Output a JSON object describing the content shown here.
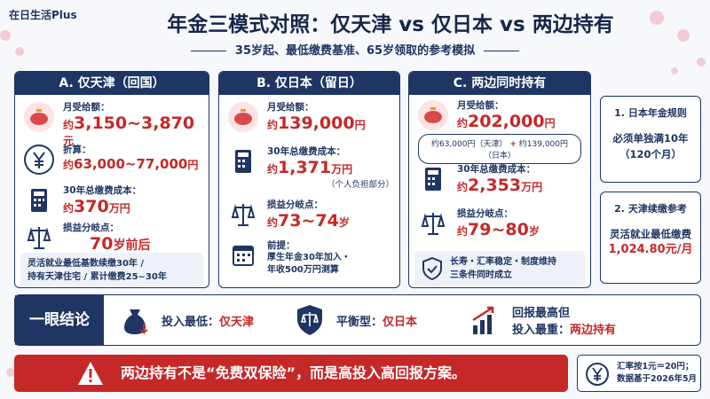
{
  "brand": "在日生活Plus",
  "title": "年金三模式对照：仅天津 vs 仅日本 vs 两边持有",
  "subtitle": "35岁起、最低缴费基准、65岁领取的参考模拟",
  "columns": [
    {
      "header": "A. 仅天津（回国）",
      "items": [
        {
          "label": "月受给额：",
          "prefix": "约",
          "value": "3,150~3,870",
          "unit": "元"
        },
        {
          "label": "折算：",
          "prefix": "约",
          "value": "63,000~77,000",
          "unit": "円"
        },
        {
          "label": "30年总缴费成本：",
          "prefix": "约",
          "value": "370",
          "unit": "万円"
        },
        {
          "label": "损益分岐点：",
          "value": "70",
          "unit": "岁前后"
        }
      ],
      "footer": [
        "灵活就业最低基数续缴30年 /",
        "持有天津住宅 / 累计缴费25~30年"
      ]
    },
    {
      "header": "B. 仅日本（留日）",
      "items": [
        {
          "label": "月受给额：",
          "prefix": "约",
          "value": "139,000",
          "unit": "円"
        },
        {
          "label": "30年总缴费成本：",
          "prefix": "约",
          "value": "1,371",
          "unit": "万円",
          "note": "（个人负担部分）"
        },
        {
          "label": "损益分岐点：",
          "prefix": "约",
          "value": "73~74",
          "unit": "岁"
        },
        {
          "label": "前提：",
          "lines": [
            "厚生年金30年加入・",
            "年收500万円测算"
          ]
        }
      ]
    },
    {
      "header": "C. 两边同时持有",
      "items": [
        {
          "label": "月受给额：",
          "prefix": "约",
          "value": "202,000",
          "unit": "円"
        },
        {
          "label": "30年总缴费成本：",
          "prefix": "约",
          "value": "2,353",
          "unit": "万円"
        },
        {
          "label": "损益分岐点：",
          "prefix": "约",
          "value": "79~80",
          "unit": "岁"
        }
      ],
      "breakdown": [
        "约63,000円（天津）",
        "+",
        "约139,000円（日本）"
      ],
      "footer": [
        "长寿・汇率稳定・制度维持",
        "三条件同时成立"
      ]
    }
  ],
  "side": [
    {
      "title": "1. 日本年金规则",
      "lines": [
        "必须单独满10年",
        "（120个月）"
      ]
    },
    {
      "title": "2. 天津续缴参考",
      "lines": [
        "灵活就业最低缴费",
        "1,024.80元/月"
      ]
    }
  ],
  "conclusion": {
    "label": "一眼结论",
    "items": [
      {
        "label": "投入最低：",
        "value": "仅天津"
      },
      {
        "label": "平衡型：",
        "value": "仅日本"
      },
      {
        "lines": [
          "回报最高但",
          "投入最重："
        ],
        "value": "两边持有"
      }
    ]
  },
  "warning": "两边持有不是“免费双保险”，而是高投入高回报方案。",
  "note": [
    "汇率按1元＝20円；",
    "数据基于2026年5月"
  ]
}
